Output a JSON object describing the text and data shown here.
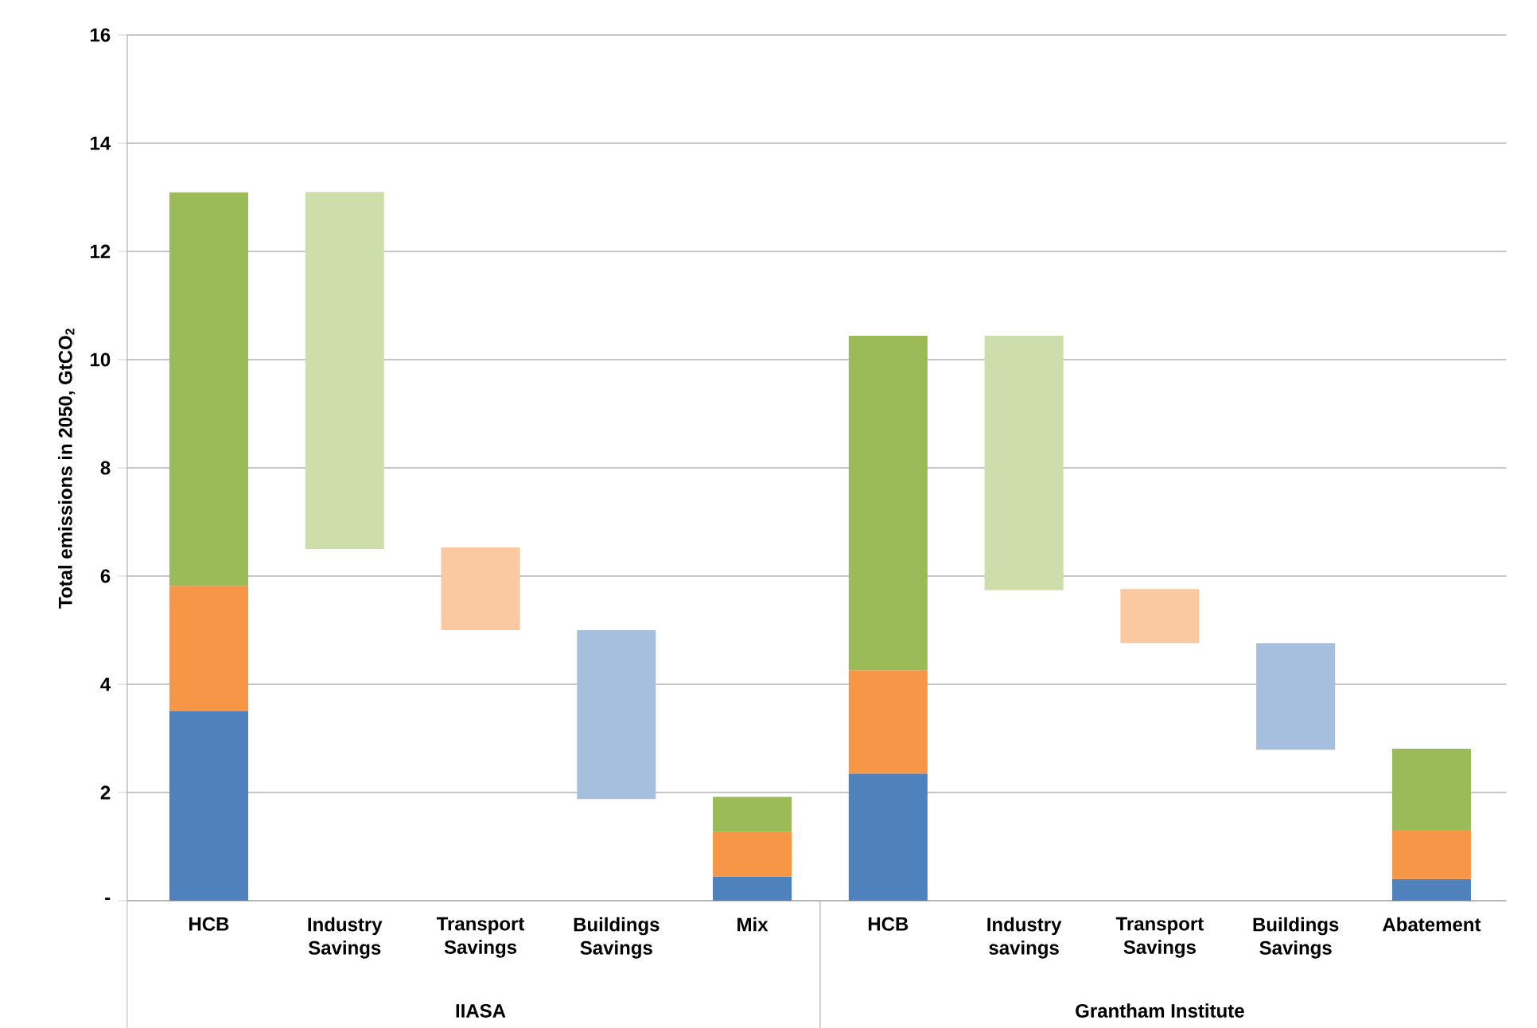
{
  "chart_data": {
    "type": "bar",
    "stacked": true,
    "ylabel": "Total emissions in 2050, GtCO$_{2}$",
    "categories": [
      "HCB",
      "Industry Savings",
      "Transport Savings",
      "Buildings Savings",
      "Mix",
      "HCB",
      "Industry savings",
      "Transport Savings",
      "Buildings Savings",
      "Abatement"
    ],
    "series": [
      {
        "color": "#4f81bd",
        "values": [
          3.5,
          null,
          null,
          null,
          0.45,
          2.35,
          null,
          null,
          null,
          0.4
        ]
      },
      {
        "color": "#f79646",
        "values": [
          2.32,
          null,
          null,
          null,
          0.82,
          1.91,
          null,
          null,
          null,
          0.91
        ]
      },
      {
        "color": "#9bbb59",
        "values": [
          7.27,
          null,
          null,
          null,
          0.65,
          6.18,
          null,
          null,
          null,
          1.5
        ]
      },
      {
        "color": "#cddeaa",
        "values": [
          null,
          6.6,
          null,
          null,
          null,
          null,
          4.7,
          null,
          null,
          null
        ],
        "base": [
          null,
          6.5,
          null,
          null,
          null,
          null,
          5.74,
          null,
          null,
          null
        ]
      },
      {
        "color": "#fac9a2",
        "values": [
          null,
          null,
          1.53,
          null,
          null,
          null,
          null,
          1.0,
          null,
          null
        ],
        "base": [
          null,
          null,
          5.0,
          null,
          null,
          null,
          null,
          4.76,
          null,
          null
        ]
      },
      {
        "color": "#a7bfde",
        "values": [
          null,
          null,
          null,
          3.12,
          null,
          null,
          null,
          null,
          1.97,
          null
        ],
        "base": [
          null,
          null,
          null,
          1.88,
          null,
          null,
          null,
          null,
          2.79,
          null
        ]
      }
    ],
    "ylim": [
      0,
      16
    ],
    "yticks": [
      {
        "value": 0,
        "label": "-"
      },
      2,
      4,
      6,
      8,
      10,
      12,
      14,
      16
    ],
    "grid": "y",
    "annotations": [
      "IIASA",
      "Grantham Institute"
    ]
  }
}
